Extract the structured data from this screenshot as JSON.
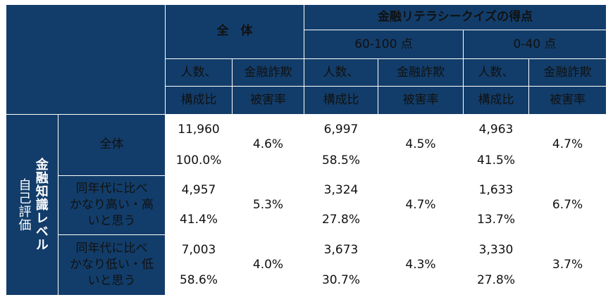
{
  "header": {
    "overall": "全　体",
    "quiz_group": "金融リテラシークイズの得点",
    "score_high": "60-100 点",
    "score_low": "0-40 点",
    "col_count_line1": "人数、",
    "col_count_line2": "構成比",
    "col_rate_line1": "金融詐欺",
    "col_rate_line2": "被害率"
  },
  "row_group": {
    "label_a": "自己評価",
    "label_b": "金融知識レベル"
  },
  "rows": [
    {
      "label": "全体",
      "label_lines": [
        "全体"
      ],
      "overall": {
        "count": "11,960",
        "share": "100.0%",
        "rate": "4.6%"
      },
      "high": {
        "count": "6,997",
        "share": "58.5%",
        "rate": "4.5%"
      },
      "low": {
        "count": "4,963",
        "share": "41.5%",
        "rate": "4.7%"
      }
    },
    {
      "label_lines": [
        "同年代に比べ",
        "かなり高い・高",
        "いと思う"
      ],
      "overall": {
        "count": "4,957",
        "share": "41.4%",
        "rate": "5.3%"
      },
      "high": {
        "count": "3,324",
        "share": "27.8%",
        "rate": "4.7%"
      },
      "low": {
        "count": "1,633",
        "share": "13.7%",
        "rate": "6.7%"
      }
    },
    {
      "label_lines": [
        "同年代に比べ",
        "かなり低い・低",
        "いと思う"
      ],
      "overall": {
        "count": "7,003",
        "share": "58.6%",
        "rate": "4.0%"
      },
      "high": {
        "count": "3,673",
        "share": "30.7%",
        "rate": "4.3%"
      },
      "low": {
        "count": "3,330",
        "share": "27.8%",
        "rate": "3.7%"
      }
    }
  ],
  "colors": {
    "header_bg": "#123d6a",
    "header_text": "#ffffff",
    "cell_bg": "#ffffff",
    "cell_border": "#2b2b2b"
  }
}
